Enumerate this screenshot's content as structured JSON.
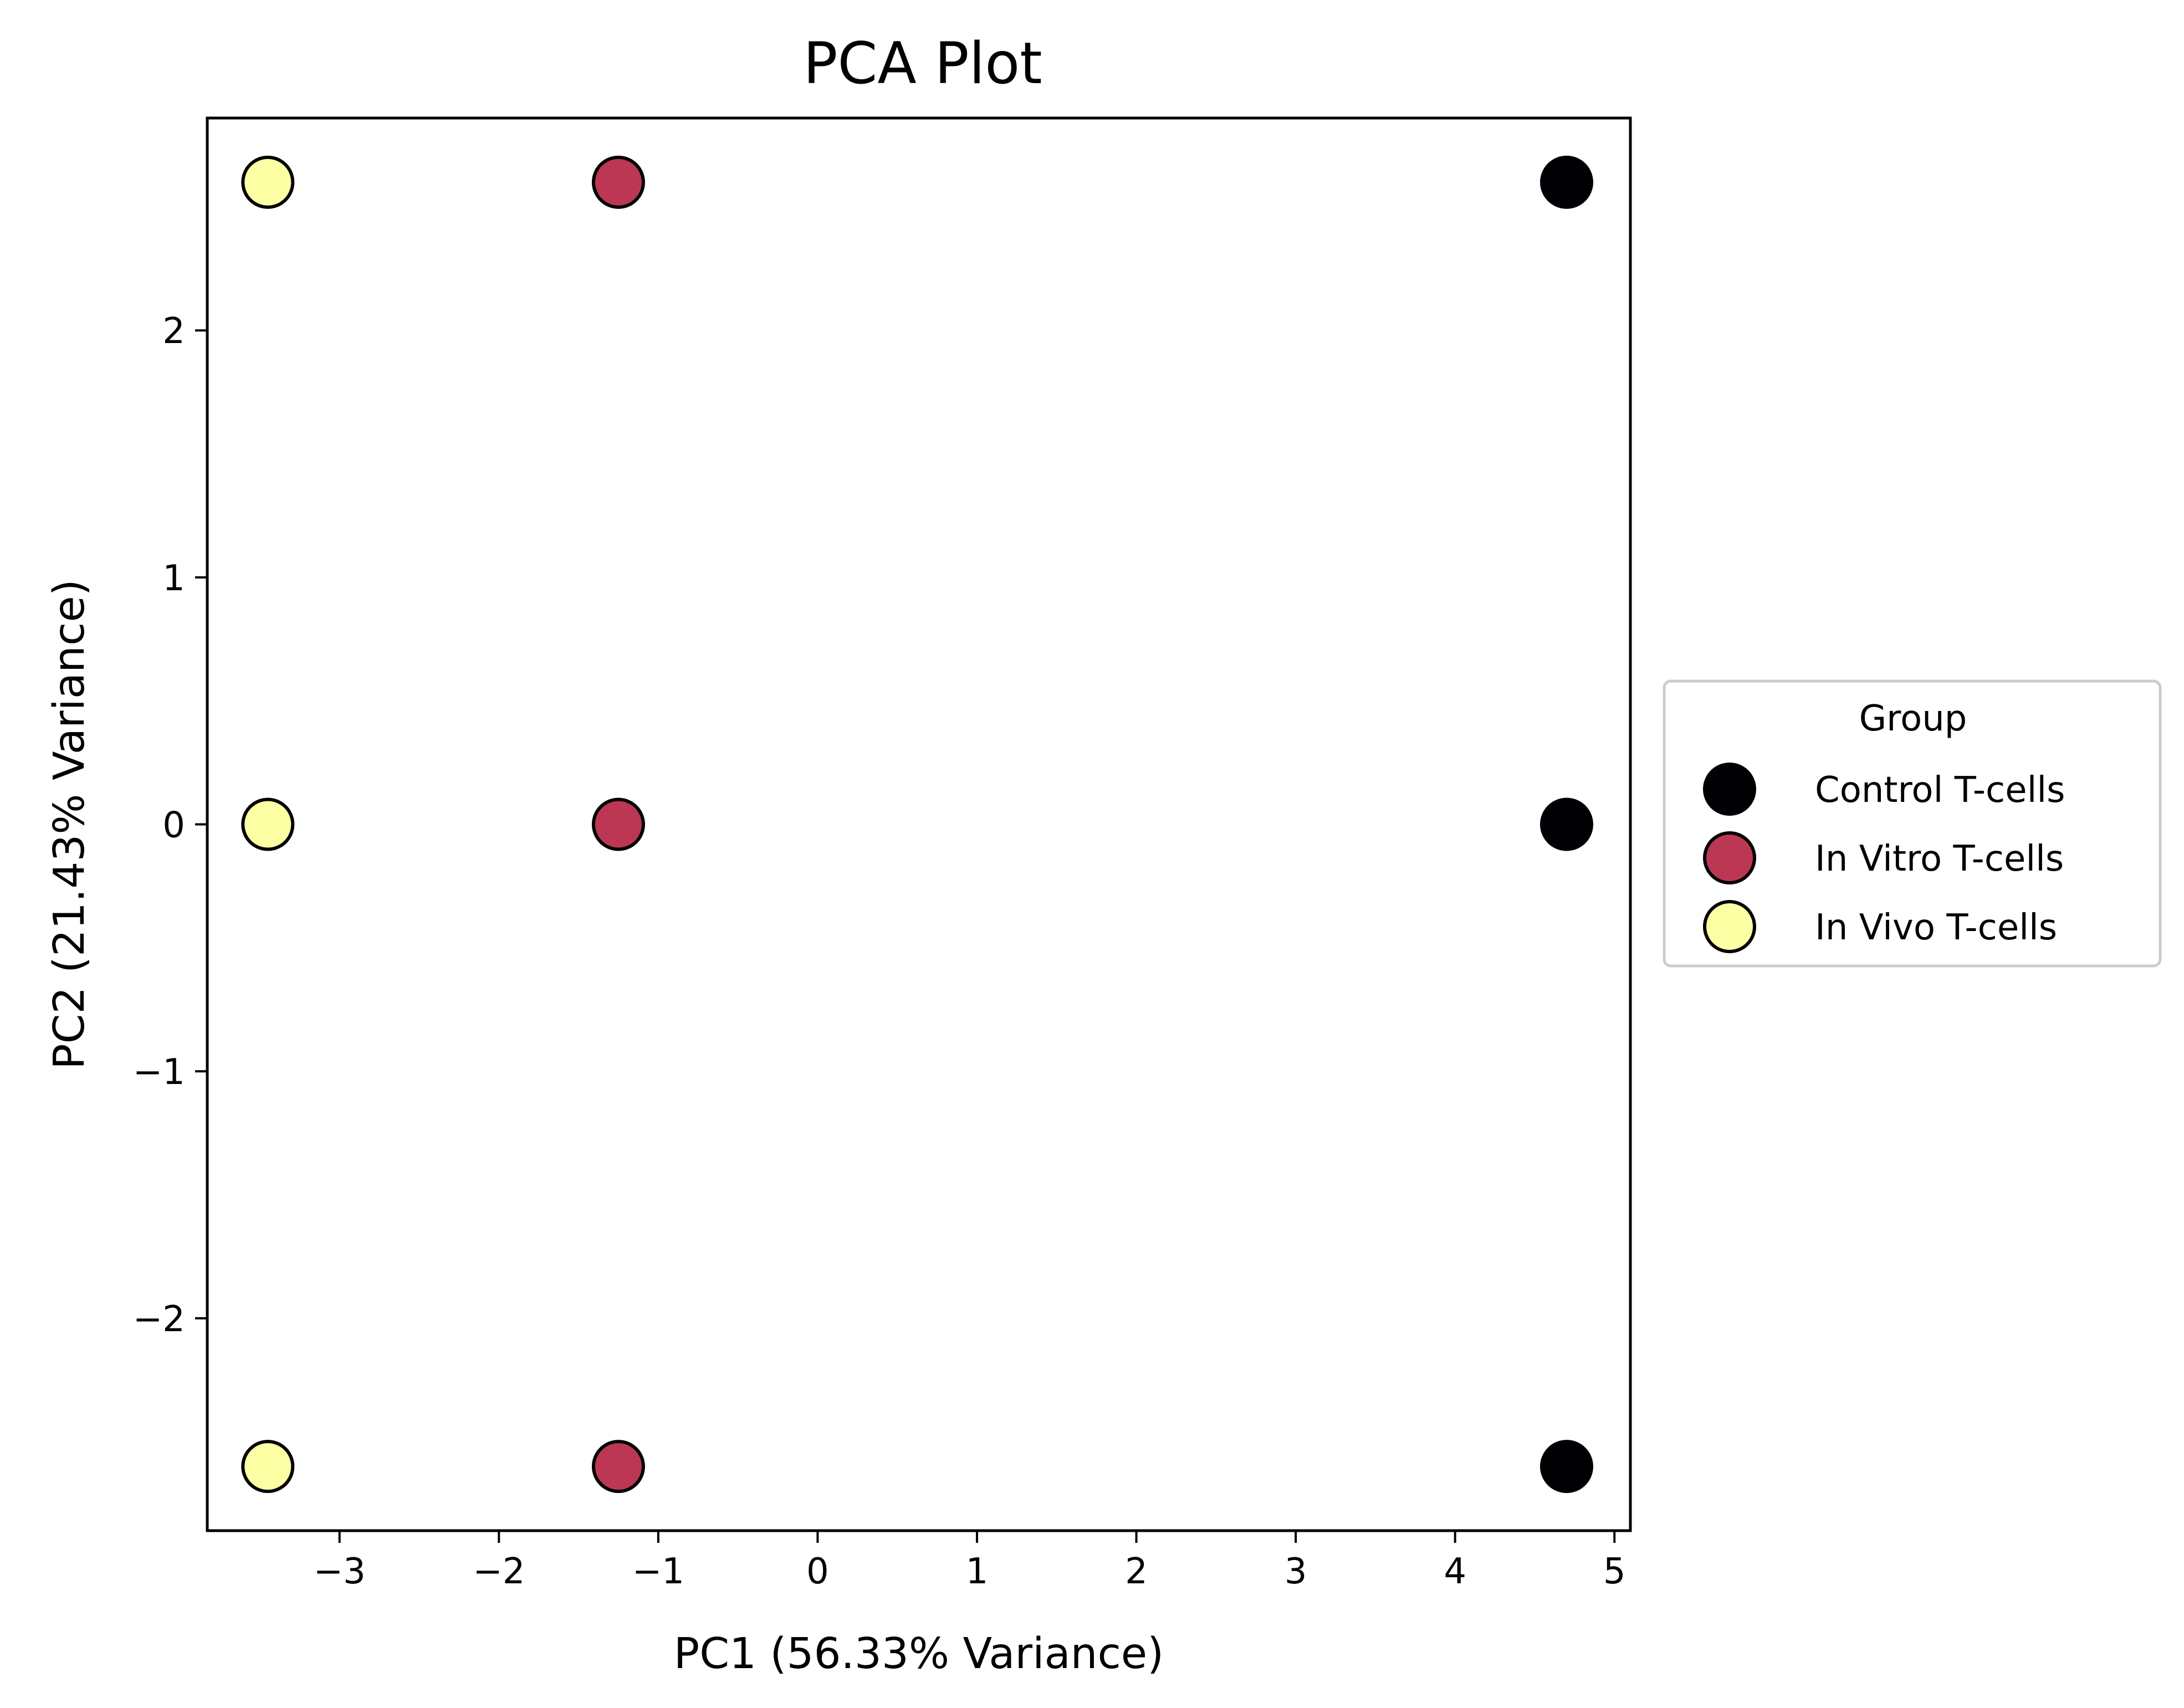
{
  "chart_data": {
    "type": "scatter",
    "title": "PCA Plot",
    "xlabel": "PC1 (56.33% Variance)",
    "ylabel": "PC2 (21.43% Variance)",
    "xlim": [
      -3.83,
      5.1
    ],
    "ylim": [
      -2.86,
      2.86
    ],
    "xticks": [
      {
        "value": -3,
        "label": "−3"
      },
      {
        "value": -2,
        "label": "−2"
      },
      {
        "value": -1,
        "label": "−1"
      },
      {
        "value": 0,
        "label": "0"
      },
      {
        "value": 1,
        "label": "1"
      },
      {
        "value": 2,
        "label": "2"
      },
      {
        "value": 3,
        "label": "3"
      },
      {
        "value": 4,
        "label": "4"
      },
      {
        "value": 5,
        "label": "5"
      }
    ],
    "yticks": [
      {
        "value": -2,
        "label": "−2"
      },
      {
        "value": -1,
        "label": "−1"
      },
      {
        "value": 0,
        "label": "0"
      },
      {
        "value": 1,
        "label": "1"
      },
      {
        "value": 2,
        "label": "2"
      }
    ],
    "grid": false,
    "legend": {
      "title": "Group",
      "placement": "outside-right"
    },
    "series": [
      {
        "name": "Control T-cells",
        "color": "#000004",
        "edgecolor": "#000000",
        "points": [
          [
            4.7,
            2.6
          ],
          [
            4.7,
            0.0
          ],
          [
            4.7,
            -2.6
          ]
        ]
      },
      {
        "name": "In Vitro T-cells",
        "color": "#bb3754",
        "edgecolor": "#000000",
        "points": [
          [
            -1.25,
            2.6
          ],
          [
            -1.25,
            0.0
          ],
          [
            -1.25,
            -2.6
          ]
        ]
      },
      {
        "name": "In Vivo T-cells",
        "color": "#fcffa4",
        "edgecolor": "#000000",
        "points": [
          [
            -3.45,
            2.6
          ],
          [
            -3.45,
            0.0
          ],
          [
            -3.45,
            -2.6
          ]
        ]
      }
    ]
  }
}
